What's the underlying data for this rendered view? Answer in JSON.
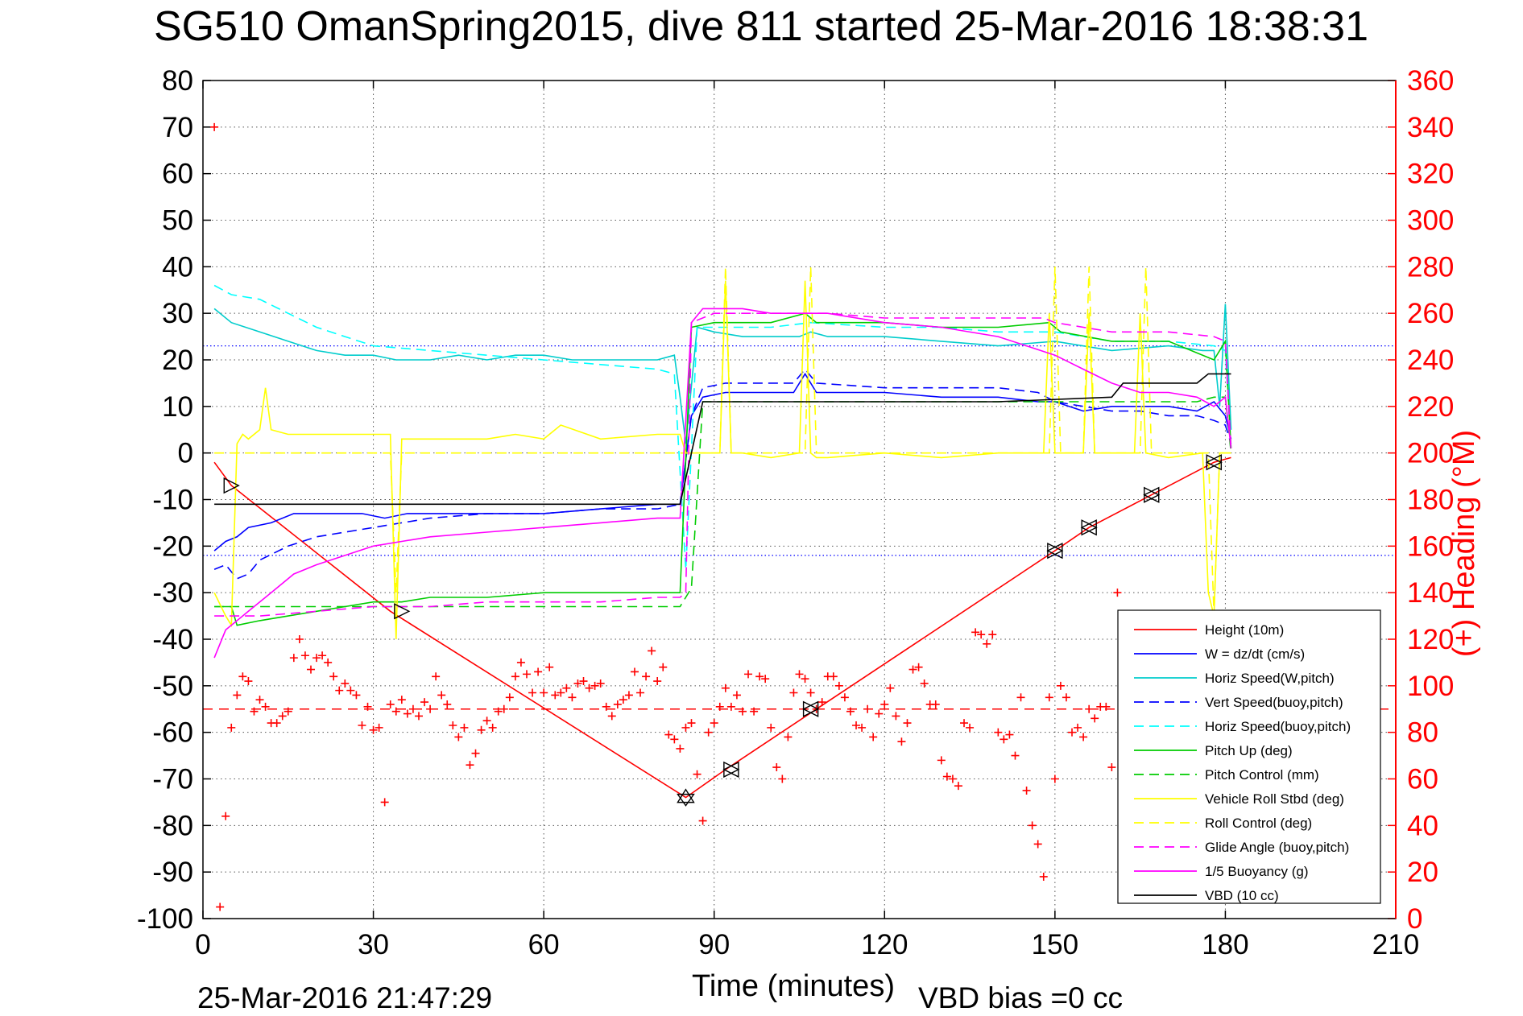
{
  "chart_data": {
    "type": "line",
    "title": "SG510 OmanSpring2015, dive 811 started 25-Mar-2016 18:38:31",
    "xlabel": "Time (minutes)",
    "ylabel_right": "(+) Heading (°M)",
    "footer_left": "25-Mar-2016 21:47:29",
    "footer_right": "VBD bias =0 cc",
    "xlim": [
      0,
      210
    ],
    "ylim": [
      -100,
      80
    ],
    "ylim_right": [
      0,
      360
    ],
    "x_ticks": [
      "0",
      "30",
      "60",
      "90",
      "120",
      "150",
      "180",
      "210"
    ],
    "y_ticks": [
      "80",
      "70",
      "60",
      "50",
      "40",
      "30",
      "20",
      "10",
      "0",
      "-10",
      "-20",
      "-30",
      "-40",
      "-50",
      "-60",
      "-70",
      "-80",
      "-90",
      "-100"
    ],
    "y_ticks_right": [
      "360",
      "340",
      "320",
      "300",
      "280",
      "260",
      "240",
      "220",
      "200",
      "180",
      "160",
      "140",
      "120",
      "100",
      "80",
      "60",
      "40",
      "20",
      "0"
    ],
    "grid": true,
    "legend_position": "bottom-right",
    "series": [
      {
        "name": "Height (10m)",
        "color": "#ff0000",
        "style": "solid",
        "x": [
          2,
          5,
          33,
          85,
          92,
          108,
          150,
          156,
          167,
          178,
          181
        ],
        "y": [
          -2,
          -7,
          -34,
          -74,
          -68,
          -55,
          -21,
          -16,
          -9,
          -2,
          -1
        ]
      },
      {
        "name": "W = dz/dt (cm/s)",
        "color": "#0000ff",
        "style": "solid",
        "x": [
          2,
          4,
          6,
          8,
          12,
          16,
          20,
          24,
          28,
          32,
          36,
          40,
          44,
          50,
          60,
          70,
          80,
          84,
          86,
          88,
          92,
          100,
          104,
          106,
          108,
          120,
          130,
          140,
          147,
          150,
          155,
          160,
          165,
          170,
          175,
          178,
          180,
          181
        ],
        "y": [
          -21,
          -19,
          -18,
          -16,
          -15,
          -13,
          -13,
          -13,
          -13,
          -14,
          -13,
          -13,
          -13,
          -13,
          -13,
          -12,
          -11,
          -11,
          8,
          12,
          13,
          13,
          13,
          17,
          13,
          13,
          12,
          12,
          11,
          11,
          9,
          10,
          10,
          10,
          9,
          11,
          8,
          3
        ]
      },
      {
        "name": "Horiz Speed(W,pitch)",
        "color": "#00cccc",
        "style": "solid",
        "x": [
          2,
          5,
          10,
          15,
          20,
          25,
          30,
          34,
          40,
          45,
          50,
          55,
          60,
          65,
          70,
          75,
          80,
          83,
          84,
          85,
          87,
          90,
          95,
          100,
          105,
          107,
          110,
          120,
          130,
          140,
          150,
          160,
          170,
          176,
          178,
          179,
          180,
          181
        ],
        "y": [
          31,
          28,
          26,
          24,
          22,
          21,
          21,
          20,
          20,
          21,
          20,
          21,
          21,
          20,
          20,
          20,
          20,
          21,
          12,
          2,
          27,
          26,
          25,
          25,
          25,
          26,
          25,
          25,
          24,
          23,
          24,
          22,
          23,
          22,
          22,
          10,
          32,
          5
        ]
      },
      {
        "name": "Vert Speed(buoy,pitch)",
        "color": "#0000ff",
        "style": "dashed",
        "x": [
          2,
          4,
          6,
          8,
          10,
          15,
          20,
          30,
          40,
          50,
          60,
          70,
          80,
          84,
          86,
          88,
          92,
          100,
          104,
          106,
          108,
          120,
          130,
          140,
          147,
          150,
          155,
          160,
          165,
          170,
          175,
          178,
          180,
          181
        ],
        "y": [
          -25,
          -24,
          -27,
          -26,
          -23,
          -20,
          -18,
          -16,
          -14,
          -13,
          -13,
          -12,
          -12,
          -11,
          8,
          14,
          15,
          15,
          15,
          18,
          15,
          14,
          14,
          14,
          13,
          11,
          10,
          9,
          9,
          8,
          8,
          7,
          6,
          2
        ]
      },
      {
        "name": "Horiz Speed(buoy,pitch)",
        "color": "#00ffff",
        "style": "dashed",
        "x": [
          2,
          5,
          10,
          15,
          20,
          25,
          30,
          40,
          50,
          60,
          70,
          80,
          83,
          85,
          87,
          90,
          100,
          107,
          120,
          130,
          140,
          150,
          160,
          170,
          178,
          180,
          181
        ],
        "y": [
          36,
          34,
          33,
          30,
          27,
          25,
          23,
          22,
          21,
          20,
          19,
          18,
          17,
          -25,
          27,
          27,
          27,
          28,
          27,
          27,
          26,
          26,
          24,
          24,
          23,
          22,
          1
        ]
      },
      {
        "name": "Pitch Up (deg)",
        "color": "#00cc00",
        "style": "solid",
        "x": [
          2,
          5,
          6,
          10,
          15,
          20,
          25,
          30,
          35,
          40,
          45,
          50,
          60,
          70,
          80,
          83,
          84,
          86,
          90,
          100,
          106,
          108,
          120,
          130,
          140,
          149,
          151,
          160,
          170,
          178,
          180,
          181
        ],
        "y": [
          -33,
          -33,
          -37,
          -36,
          -35,
          -34,
          -33,
          -32,
          -32,
          -31,
          -31,
          -31,
          -30,
          -30,
          -30,
          -30,
          -30,
          27,
          28,
          28,
          30,
          28,
          28,
          27,
          27,
          28,
          26,
          24,
          24,
          20,
          24,
          1
        ]
      },
      {
        "name": "Pitch Control (mm)",
        "color": "#00cc00",
        "style": "dashed",
        "x": [
          2,
          5,
          84,
          86,
          88,
          90,
          95,
          100,
          105,
          110,
          120,
          130,
          140,
          150,
          160,
          170,
          175,
          178,
          180,
          181
        ],
        "y": [
          -33,
          -33,
          -33,
          -29,
          11,
          11,
          11,
          11,
          11,
          11,
          11,
          11,
          11,
          11,
          11,
          11,
          11,
          12,
          12,
          0
        ]
      },
      {
        "name": "Vehicle Roll Stbd (deg)",
        "color": "#ffff00",
        "style": "solid",
        "x": [
          2,
          4,
          5,
          6,
          7,
          8,
          10,
          11,
          12,
          15,
          20,
          25,
          30,
          33,
          34,
          35,
          40,
          50,
          55,
          60,
          63,
          70,
          80,
          84,
          85,
          86,
          91,
          92,
          93,
          95,
          100,
          105,
          106,
          107,
          108,
          110,
          120,
          130,
          140,
          148,
          149,
          150,
          151,
          155,
          156,
          157,
          160,
          164,
          165,
          166,
          170,
          176,
          177,
          178,
          179,
          180,
          181
        ],
        "y": [
          -30,
          -35,
          -37,
          2,
          4,
          3,
          5,
          14,
          5,
          4,
          4,
          4,
          4,
          4,
          -40,
          3,
          3,
          3,
          4,
          3,
          6,
          3,
          4,
          4,
          0,
          0,
          0,
          37,
          0,
          0,
          -1,
          0,
          37,
          0,
          -1,
          -1,
          0,
          -1,
          0,
          0,
          30,
          0,
          0,
          0,
          30,
          0,
          0,
          0,
          30,
          0,
          -1,
          0,
          -30,
          -35,
          0,
          0,
          0
        ]
      },
      {
        "name": "Roll Control (deg)",
        "color": "#ffff00",
        "style": "dashed",
        "x": [
          2,
          5,
          33,
          34,
          35,
          91,
          92,
          93,
          106,
          107,
          108,
          149,
          150,
          151,
          155,
          156,
          157,
          165,
          166,
          167,
          177,
          178,
          179,
          181
        ],
        "y": [
          0,
          0,
          0,
          -30,
          0,
          0,
          40,
          0,
          0,
          40,
          0,
          0,
          40,
          0,
          0,
          40,
          0,
          0,
          40,
          0,
          0,
          -35,
          0,
          0
        ]
      },
      {
        "name": "Glide Angle (buoy,pitch)",
        "color": "#ff00ff",
        "style": "dashed",
        "x": [
          2,
          5,
          10,
          20,
          30,
          40,
          50,
          60,
          70,
          80,
          84,
          85,
          86,
          90,
          100,
          110,
          120,
          130,
          140,
          148,
          150,
          155,
          160,
          170,
          178,
          180,
          181
        ],
        "y": [
          -35,
          -35,
          -35,
          -34,
          -33,
          -33,
          -32,
          -32,
          -32,
          -31,
          -31,
          -30,
          28,
          30,
          30,
          30,
          29,
          29,
          29,
          29,
          28,
          27,
          26,
          26,
          25,
          24,
          1
        ]
      },
      {
        "name": "1/5 Buoyancy (g)",
        "color": "#ff00ff",
        "style": "solid",
        "x": [
          2,
          4,
          8,
          12,
          16,
          20,
          25,
          30,
          35,
          40,
          50,
          60,
          70,
          80,
          84,
          86,
          88,
          95,
          100,
          110,
          120,
          130,
          140,
          145,
          150,
          155,
          160,
          165,
          170,
          175,
          178,
          180,
          181
        ],
        "y": [
          -44,
          -38,
          -34,
          -30,
          -26,
          -24,
          -22,
          -20,
          -19,
          -18,
          -17,
          -16,
          -15,
          -14,
          -14,
          28,
          31,
          31,
          30,
          30,
          28,
          27,
          25,
          23,
          21,
          18,
          15,
          13,
          13,
          12,
          10,
          12,
          1
        ]
      },
      {
        "name": "VBD (10 cc)",
        "color": "#000000",
        "style": "solid",
        "x": [
          2,
          20,
          40,
          60,
          84,
          88,
          100,
          120,
          140,
          160,
          162,
          175,
          177,
          181
        ],
        "y": [
          -11,
          -11,
          -11,
          -11,
          -11,
          11,
          11,
          11,
          11,
          12,
          15,
          15,
          17,
          17
        ]
      }
    ],
    "heading_series": {
      "name": "Heading",
      "color": "#ff0000",
      "marker": "+",
      "desired_heading": 90,
      "x": [
        2,
        3,
        4,
        5,
        6,
        7,
        8,
        9,
        10,
        11,
        12,
        13,
        14,
        15,
        16,
        17,
        18,
        19,
        20,
        21,
        22,
        23,
        24,
        25,
        26,
        27,
        28,
        29,
        30,
        31,
        32,
        33,
        34,
        35,
        36,
        37,
        38,
        39,
        40,
        41,
        42,
        43,
        44,
        45,
        46,
        47,
        48,
        49,
        50,
        51,
        52,
        53,
        54,
        55,
        56,
        57,
        58,
        59,
        60,
        61,
        62,
        63,
        64,
        65,
        66,
        67,
        68,
        69,
        70,
        71,
        72,
        73,
        74,
        75,
        76,
        77,
        78,
        79,
        80,
        81,
        82,
        83,
        84,
        85,
        86,
        87,
        88,
        89,
        90,
        91,
        92,
        93,
        94,
        95,
        96,
        97,
        98,
        99,
        100,
        101,
        102,
        103,
        104,
        105,
        106,
        107,
        108,
        109,
        110,
        111,
        112,
        113,
        114,
        115,
        116,
        117,
        118,
        119,
        120,
        121,
        122,
        123,
        124,
        125,
        126,
        127,
        128,
        129,
        130,
        131,
        132,
        133,
        134,
        135,
        136,
        137,
        138,
        139,
        140,
        141,
        142,
        143,
        144,
        145,
        146,
        147,
        148,
        149,
        150,
        151,
        152,
        153,
        154,
        155,
        156,
        157,
        158,
        159,
        160,
        161,
        162
      ],
      "y": [
        340,
        5,
        44,
        82,
        96,
        104,
        102,
        89,
        94,
        91,
        84,
        84,
        87,
        89,
        112,
        120,
        113,
        107,
        112,
        113,
        110,
        104,
        98,
        101,
        98,
        96,
        83,
        91,
        81,
        82,
        50,
        92,
        89,
        94,
        88,
        90,
        87,
        93,
        90,
        104,
        96,
        92,
        83,
        78,
        82,
        66,
        71,
        81,
        85,
        82,
        89,
        90,
        95,
        104,
        110,
        105,
        97,
        106,
        97,
        108,
        96,
        97,
        99,
        95,
        101,
        102,
        99,
        100,
        101,
        91,
        87,
        92,
        94,
        96,
        106,
        97,
        104,
        115,
        102,
        108,
        79,
        77,
        73,
        82,
        84,
        62,
        42,
        80,
        84,
        91,
        99,
        91,
        96,
        89,
        105,
        89,
        104,
        103,
        82,
        65,
        60,
        78,
        97,
        105,
        103,
        97,
        90,
        93,
        104,
        104,
        100,
        95,
        89,
        83,
        82,
        90,
        78,
        88,
        92,
        99,
        87,
        76,
        84,
        107,
        108,
        101,
        92,
        92,
        68,
        61,
        60,
        57,
        84,
        82,
        123,
        122,
        118,
        122,
        80,
        77,
        79,
        70,
        95,
        55,
        40,
        32,
        18,
        95,
        60,
        100,
        95,
        80,
        82,
        78,
        90,
        86,
        91,
        91,
        65,
        140,
        100
      ]
    },
    "limit_lines": [
      {
        "color": "#0000ff",
        "style": "dotted",
        "y": 23
      },
      {
        "color": "#0000ff",
        "style": "dotted",
        "y": -22
      }
    ],
    "markers": {
      "apogee_x": 85,
      "apogee_y": -74,
      "triangle_x": [
        5,
        35,
        93,
        107,
        150,
        156,
        167,
        178
      ],
      "triangle_y": [
        -7,
        -34,
        -68,
        -55,
        -21,
        -16,
        -9,
        -2
      ]
    }
  }
}
